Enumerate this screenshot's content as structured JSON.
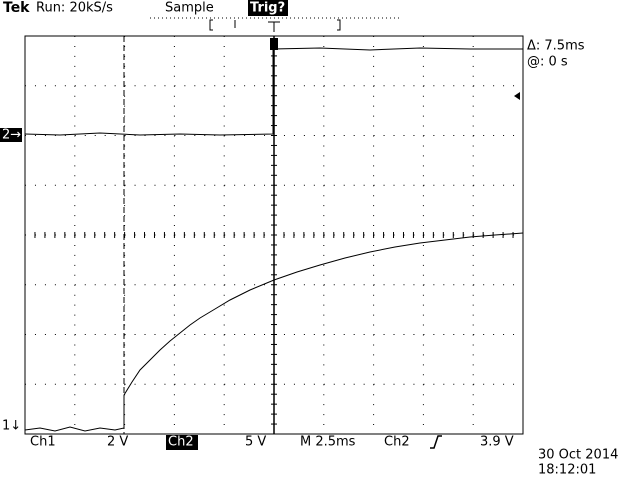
{
  "header": {
    "brand": "Tek",
    "run": "Run: 20kS/s",
    "mode": "Sample",
    "trigger": "Trig?"
  },
  "cursor": {
    "delta": "Δ: 7.5ms",
    "at": "@: 0 s"
  },
  "markers": {
    "ch2": "2→",
    "ch1": "1↓"
  },
  "footer": {
    "ch1_label": "Ch1",
    "ch1_scale": "2 V",
    "ch2_label": "Ch2",
    "ch2_scale": "5 V",
    "timebase": "M 2.5ms",
    "trigger_source": "Ch2",
    "trigger_level": "3.9 V",
    "date": "30 Oct 2014",
    "time": "18:12:01"
  }
}
